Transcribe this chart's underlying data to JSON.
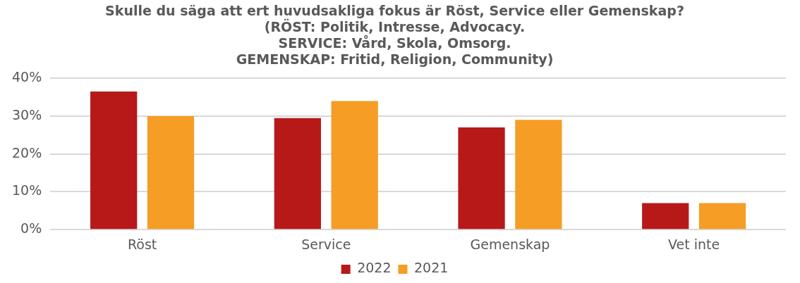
{
  "chart_data": {
    "type": "bar",
    "title": "Skulle du säga att ert huvudsakliga fokus är Röst, Service eller Gemenskap?\n(RÖST: Politik, Intresse, Advocacy.\nSERVICE: Vård, Skola, Omsorg.\nGEMENSKAP: Fritid, Religion, Community)",
    "categories": [
      "Röst",
      "Service",
      "Gemenskap",
      "Vet inte"
    ],
    "series": [
      {
        "name": "2022",
        "color": "#b71919",
        "values": [
          36.5,
          29.5,
          27,
          7
        ]
      },
      {
        "name": "2021",
        "color": "#f59d25",
        "values": [
          30,
          34,
          29,
          7
        ]
      }
    ],
    "ylim": [
      0,
      40
    ],
    "yticks": [
      {
        "value": 0,
        "label": "0%"
      },
      {
        "value": 10,
        "label": "10%"
      },
      {
        "value": 20,
        "label": "20%"
      },
      {
        "value": 30,
        "label": "30%"
      },
      {
        "value": 40,
        "label": "40%"
      }
    ],
    "grid": "y",
    "legend": "bottom"
  }
}
